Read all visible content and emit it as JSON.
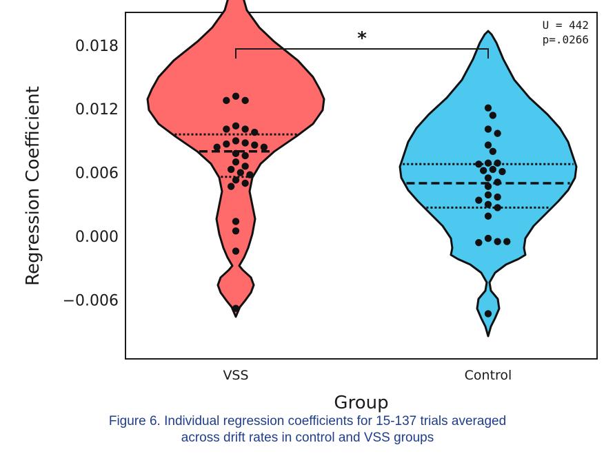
{
  "chart_data": {
    "type": "violin",
    "xlabel": "Group",
    "ylabel": "Regression Coefficient",
    "y_ticks": [
      -0.006,
      0.0,
      0.006,
      0.012,
      0.018
    ],
    "y_tick_labels": [
      "−0.006",
      "0.000",
      "0.006",
      "0.012",
      "0.018"
    ],
    "ylim": [
      -0.0105,
      0.0215
    ],
    "categories": [
      "VSS",
      "Control"
    ],
    "colors": [
      "#ff6b6b",
      "#4dc9f0"
    ],
    "groups": [
      {
        "name": "VSS",
        "quartiles": {
          "q1": 0.0056,
          "median": 0.008,
          "q3": 0.0096
        },
        "violin_extent": [
          -0.009,
          0.0155
        ],
        "points": [
          0.0132,
          0.0128,
          0.0128,
          0.0104,
          0.0101,
          0.0101,
          0.0098,
          0.009,
          0.0088,
          0.0087,
          0.0086,
          0.0084,
          0.0084,
          0.0078,
          0.0076,
          0.007,
          0.0066,
          0.0063,
          0.006,
          0.0058,
          0.0053,
          0.005,
          0.0047,
          0.0014,
          0.0005,
          -0.0014,
          -0.0068
        ]
      },
      {
        "name": "Control",
        "quartiles": {
          "q1": 0.0027,
          "median": 0.005,
          "q3": 0.0068
        },
        "violin_extent": [
          -0.0094,
          0.0143
        ],
        "points": [
          0.0121,
          0.0114,
          0.0101,
          0.0097,
          0.0086,
          0.008,
          0.0069,
          0.0069,
          0.0068,
          0.0063,
          0.0062,
          0.0061,
          0.0055,
          0.0051,
          0.0047,
          0.0039,
          0.0037,
          0.0034,
          0.003,
          0.0027,
          0.0019,
          -0.0002,
          -0.0005,
          -0.0006,
          -0.0005,
          -0.0073
        ]
      }
    ],
    "annotation": {
      "significance": "*",
      "stat_line1": "U = 442",
      "stat_line2": "p=.0266"
    },
    "grid": false
  },
  "caption": {
    "line1": "Figure 6. Individual regression coefficients for 15-137 trials averaged",
    "line2": "across drift rates in control and VSS groups"
  }
}
